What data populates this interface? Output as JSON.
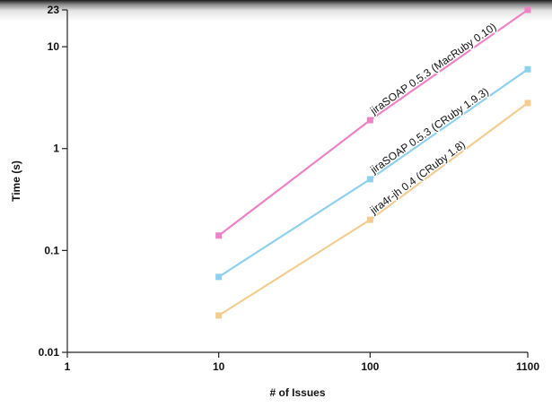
{
  "chart_data": {
    "type": "line",
    "title": "",
    "xlabel": "# of Issues",
    "ylabel": "Time (s)",
    "x_scale": "log",
    "y_scale": "log",
    "xlim": [
      1,
      1100
    ],
    "ylim": [
      0.01,
      23
    ],
    "grid": false,
    "x_ticks": [
      {
        "value": 1,
        "label": "1"
      },
      {
        "value": 10,
        "label": "10"
      },
      {
        "value": 100,
        "label": "100"
      },
      {
        "value": 1100,
        "label": "1100"
      }
    ],
    "y_ticks": [
      {
        "value": 0.01,
        "label": "0.01"
      },
      {
        "value": 0.1,
        "label": "0.1"
      },
      {
        "value": 1,
        "label": "1"
      },
      {
        "value": 10,
        "label": "10"
      },
      {
        "value": 23,
        "label": "23"
      }
    ],
    "series": [
      {
        "name": "jiraSOAP 0.5.3 (MacRuby 0.10)",
        "color": "#ee82c6",
        "x": [
          10,
          100,
          1100
        ],
        "y": [
          0.14,
          1.9,
          23
        ]
      },
      {
        "name": "jiraSOAP 0.5.3 (CRuby 1.9.3)",
        "color": "#8fd0ee",
        "x": [
          10,
          100,
          1100
        ],
        "y": [
          0.055,
          0.5,
          6.0
        ]
      },
      {
        "name": "jira4r-jh 0.4 (CRuby 1.8)",
        "color": "#f4cc90",
        "x": [
          10,
          100,
          1100
        ],
        "y": [
          0.023,
          0.2,
          2.8
        ]
      }
    ]
  }
}
